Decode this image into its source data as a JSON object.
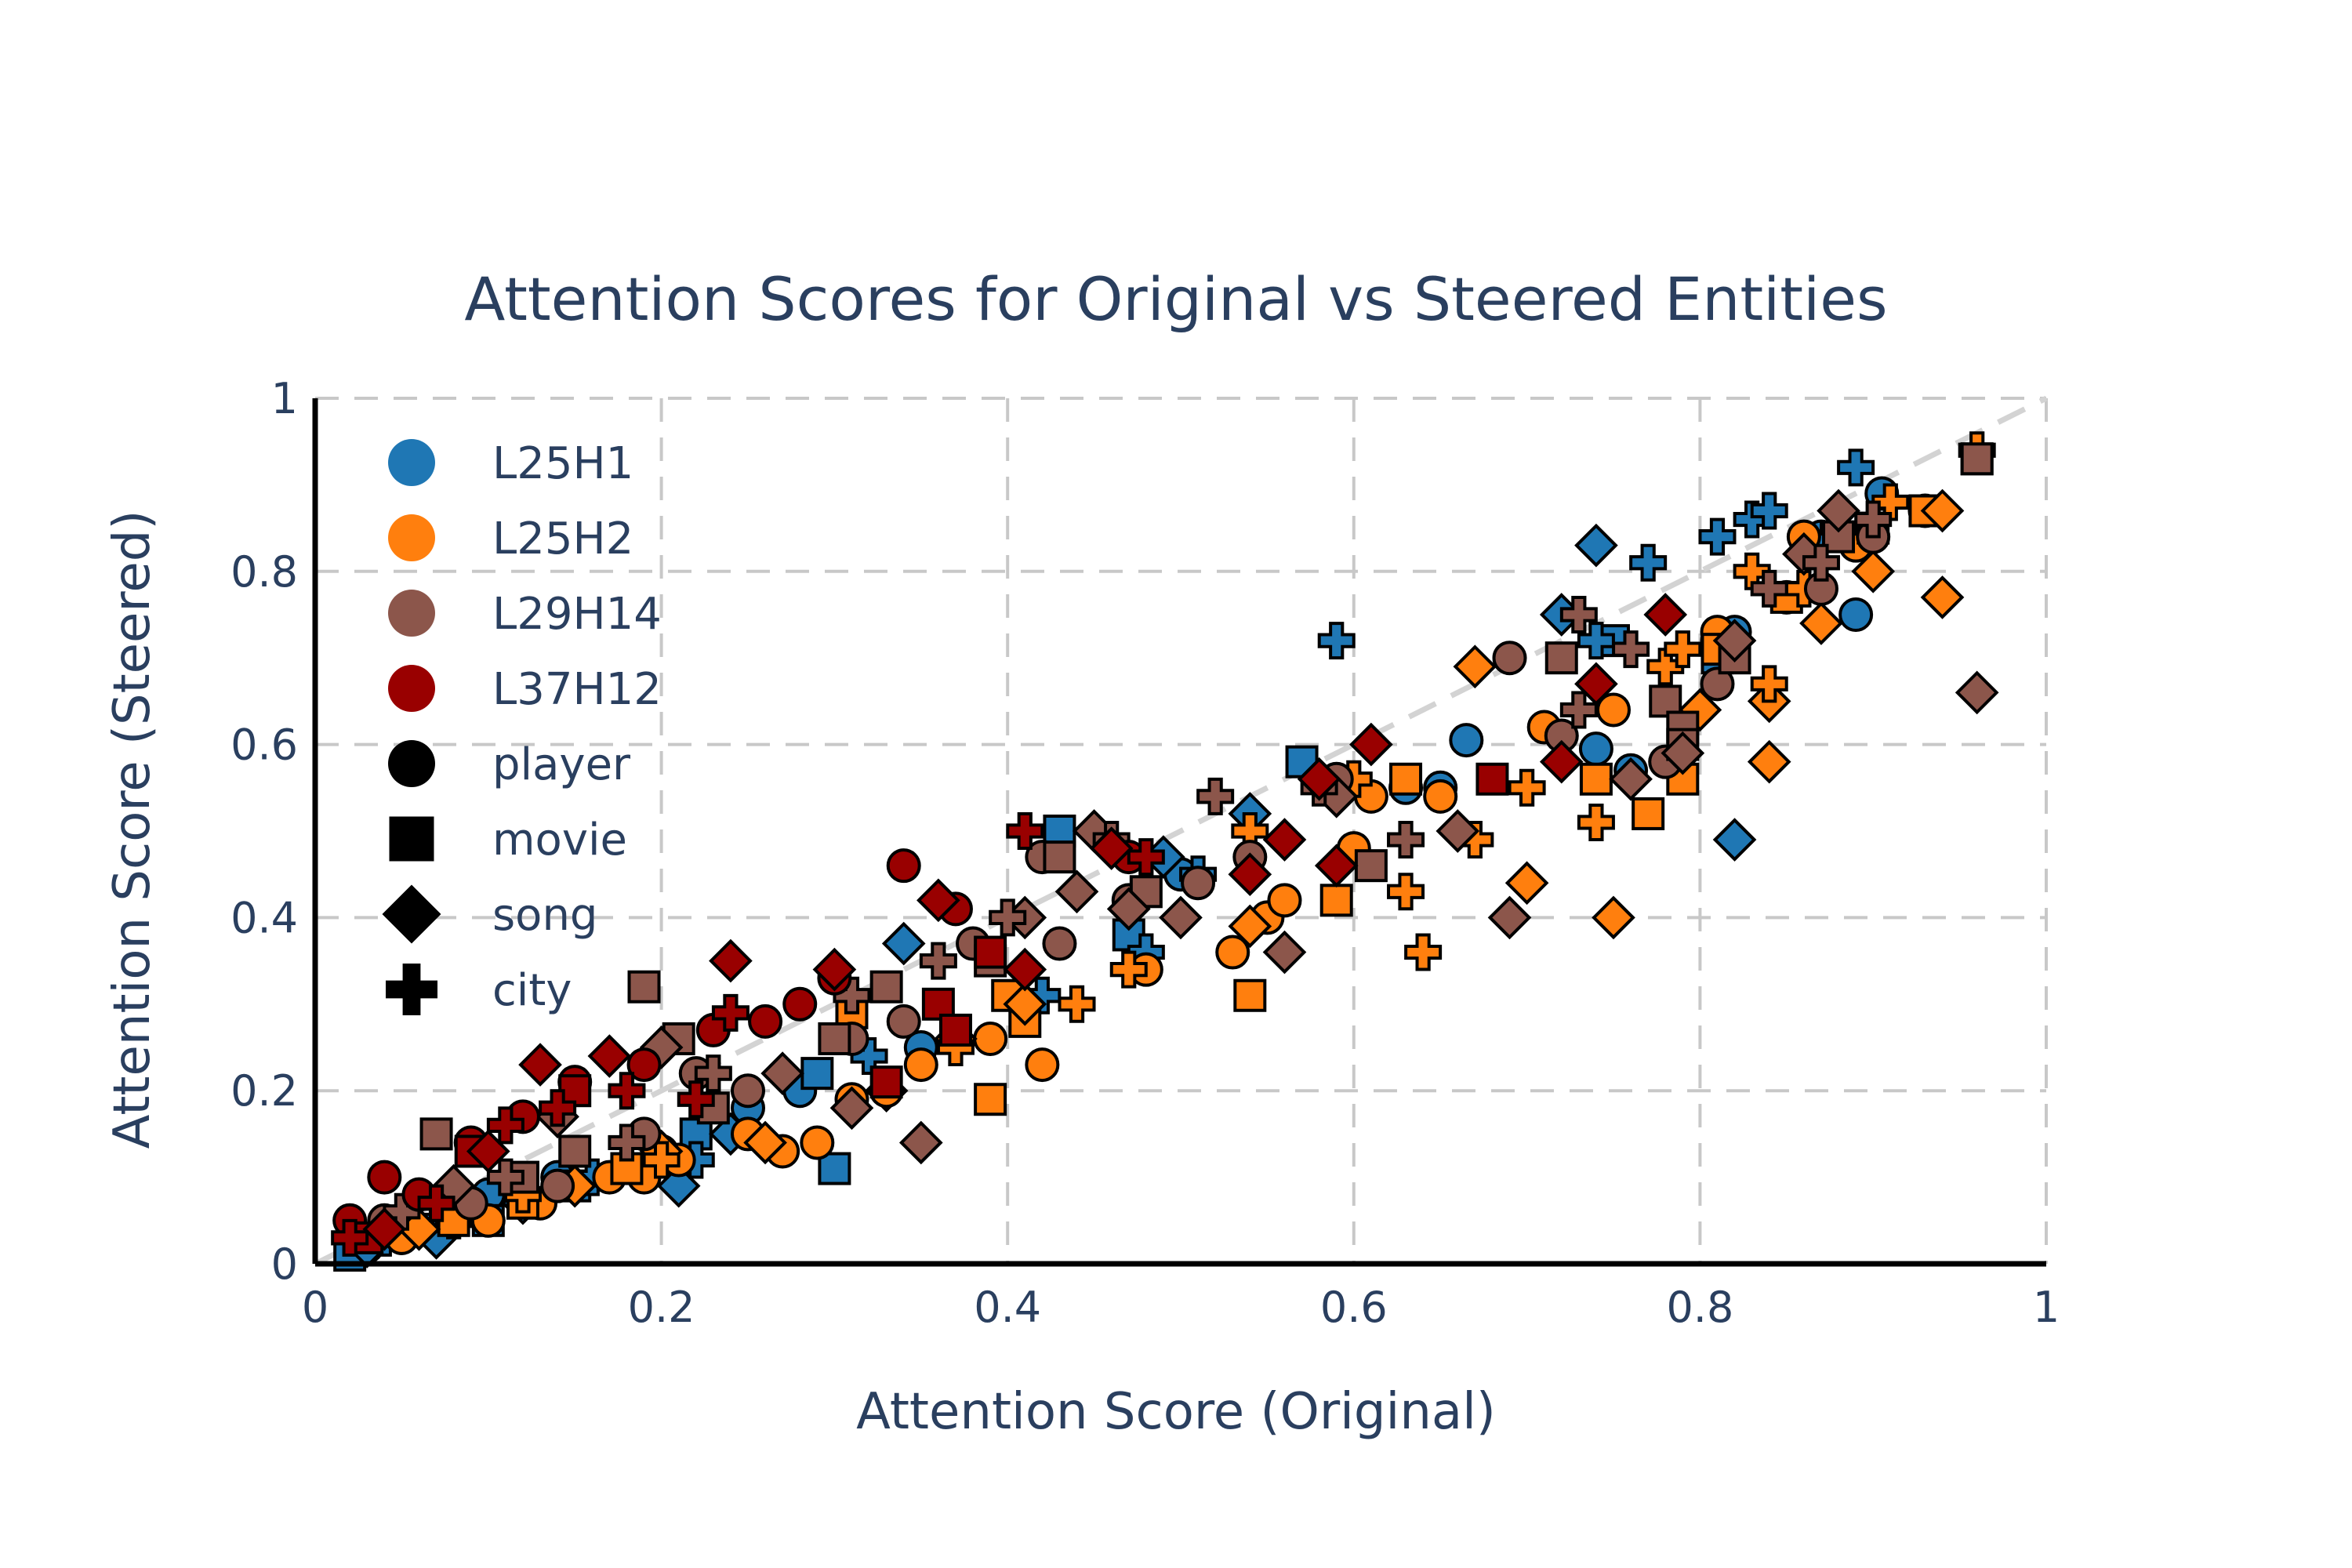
{
  "chart_data": {
    "type": "scatter",
    "title": "Attention Scores for Original vs Steered Entities",
    "xlabel": "Attention Score (Original)",
    "ylabel": "Attention Score (Steered)",
    "xlim": [
      0,
      1
    ],
    "ylim": [
      0,
      1
    ],
    "xticks": [
      0,
      0.2,
      0.4,
      0.6,
      0.8,
      1
    ],
    "yticks": [
      0,
      0.2,
      0.4,
      0.6,
      0.8,
      1
    ],
    "xtick_labels": [
      "0",
      "0.2",
      "0.4",
      "0.6",
      "0.8",
      "1"
    ],
    "ytick_labels": [
      "0",
      "0.2",
      "0.4",
      "0.6",
      "0.8",
      "1"
    ],
    "grid": true,
    "grid_style": "dashed",
    "reference_line": "y = x (dashed)",
    "legend_placement": "top-left",
    "heads": [
      {
        "name": "L25H1",
        "color": "#1f77b4"
      },
      {
        "name": "L25H2",
        "color": "#ff7f0e"
      },
      {
        "name": "L29H14",
        "color": "#8c564b"
      },
      {
        "name": "L37H12",
        "color": "#990000"
      }
    ],
    "entity_types": [
      {
        "name": "player",
        "symbol": "circle"
      },
      {
        "name": "movie",
        "symbol": "square"
      },
      {
        "name": "song",
        "symbol": "diamond"
      },
      {
        "name": "city",
        "symbol": "cross"
      }
    ],
    "series": [
      {
        "head": "L25H1",
        "entity": "player",
        "points": [
          [
            0.03,
            0.02
          ],
          [
            0.05,
            0.03
          ],
          [
            0.1,
            0.08
          ],
          [
            0.14,
            0.1
          ],
          [
            0.2,
            0.13
          ],
          [
            0.25,
            0.18
          ],
          [
            0.28,
            0.2
          ],
          [
            0.35,
            0.25
          ],
          [
            0.5,
            0.45
          ],
          [
            0.63,
            0.55
          ],
          [
            0.65,
            0.55
          ],
          [
            0.665,
            0.605
          ],
          [
            0.74,
            0.595
          ],
          [
            0.76,
            0.57
          ],
          [
            0.81,
            0.72
          ],
          [
            0.82,
            0.73
          ],
          [
            0.85,
            0.77
          ],
          [
            0.87,
            0.84
          ],
          [
            0.89,
            0.75
          ],
          [
            0.905,
            0.89
          ]
        ]
      },
      {
        "head": "L25H1",
        "entity": "movie",
        "points": [
          [
            0.02,
            0.01
          ],
          [
            0.06,
            0.04
          ],
          [
            0.1,
            0.05
          ],
          [
            0.15,
            0.09
          ],
          [
            0.22,
            0.15
          ],
          [
            0.29,
            0.22
          ],
          [
            0.3,
            0.11
          ],
          [
            0.43,
            0.5
          ],
          [
            0.47,
            0.38
          ],
          [
            0.57,
            0.58
          ],
          [
            0.75,
            0.72
          ],
          [
            0.81,
            0.7
          ]
        ]
      },
      {
        "head": "L25H1",
        "entity": "song",
        "points": [
          [
            0.03,
            0.02
          ],
          [
            0.07,
            0.03
          ],
          [
            0.12,
            0.07
          ],
          [
            0.21,
            0.09
          ],
          [
            0.24,
            0.15
          ],
          [
            0.33,
            0.2
          ],
          [
            0.34,
            0.37
          ],
          [
            0.41,
            0.3
          ],
          [
            0.49,
            0.47
          ],
          [
            0.54,
            0.52
          ],
          [
            0.72,
            0.75
          ],
          [
            0.74,
            0.83
          ],
          [
            0.82,
            0.49
          ]
        ]
      },
      {
        "head": "L25H1",
        "entity": "city",
        "points": [
          [
            0.04,
            0.03
          ],
          [
            0.08,
            0.05
          ],
          [
            0.16,
            0.1
          ],
          [
            0.22,
            0.12
          ],
          [
            0.32,
            0.24
          ],
          [
            0.42,
            0.31
          ],
          [
            0.48,
            0.36
          ],
          [
            0.51,
            0.45
          ],
          [
            0.59,
            0.72
          ],
          [
            0.74,
            0.72
          ],
          [
            0.77,
            0.81
          ],
          [
            0.81,
            0.84
          ],
          [
            0.83,
            0.86
          ],
          [
            0.84,
            0.87
          ],
          [
            0.89,
            0.92
          ]
        ]
      },
      {
        "head": "L25H2",
        "entity": "player",
        "points": [
          [
            0.05,
            0.03
          ],
          [
            0.1,
            0.05
          ],
          [
            0.13,
            0.07
          ],
          [
            0.17,
            0.1
          ],
          [
            0.19,
            0.1
          ],
          [
            0.21,
            0.12
          ],
          [
            0.25,
            0.15
          ],
          [
            0.27,
            0.13
          ],
          [
            0.29,
            0.14
          ],
          [
            0.31,
            0.19
          ],
          [
            0.33,
            0.2
          ],
          [
            0.35,
            0.23
          ],
          [
            0.39,
            0.26
          ],
          [
            0.42,
            0.23
          ],
          [
            0.48,
            0.34
          ],
          [
            0.53,
            0.36
          ],
          [
            0.55,
            0.4
          ],
          [
            0.56,
            0.42
          ],
          [
            0.6,
            0.48
          ],
          [
            0.61,
            0.54
          ],
          [
            0.65,
            0.54
          ],
          [
            0.71,
            0.62
          ],
          [
            0.75,
            0.64
          ],
          [
            0.81,
            0.73
          ],
          [
            0.86,
            0.84
          ],
          [
            0.89,
            0.83
          ],
          [
            0.93,
            0.87
          ]
        ]
      },
      {
        "head": "L25H2",
        "entity": "movie",
        "points": [
          [
            0.08,
            0.05
          ],
          [
            0.12,
            0.07
          ],
          [
            0.18,
            0.11
          ],
          [
            0.31,
            0.29
          ],
          [
            0.39,
            0.19
          ],
          [
            0.4,
            0.31
          ],
          [
            0.41,
            0.28
          ],
          [
            0.54,
            0.31
          ],
          [
            0.59,
            0.42
          ],
          [
            0.63,
            0.56
          ],
          [
            0.74,
            0.56
          ],
          [
            0.77,
            0.52
          ],
          [
            0.79,
            0.56
          ],
          [
            0.81,
            0.71
          ],
          [
            0.85,
            0.77
          ],
          [
            0.9,
            0.85
          ],
          [
            0.93,
            0.87
          ],
          [
            0.96,
            0.93
          ]
        ]
      },
      {
        "head": "L25H2",
        "entity": "song",
        "points": [
          [
            0.06,
            0.04
          ],
          [
            0.15,
            0.09
          ],
          [
            0.2,
            0.13
          ],
          [
            0.26,
            0.14
          ],
          [
            0.37,
            0.26
          ],
          [
            0.41,
            0.3
          ],
          [
            0.47,
            0.41
          ],
          [
            0.54,
            0.39
          ],
          [
            0.67,
            0.69
          ],
          [
            0.7,
            0.44
          ],
          [
            0.75,
            0.4
          ],
          [
            0.8,
            0.64
          ],
          [
            0.84,
            0.58
          ],
          [
            0.84,
            0.65
          ],
          [
            0.87,
            0.74
          ],
          [
            0.9,
            0.8
          ],
          [
            0.94,
            0.77
          ],
          [
            0.94,
            0.87
          ]
        ]
      },
      {
        "head": "L25H2",
        "entity": "city",
        "points": [
          [
            0.12,
            0.08
          ],
          [
            0.2,
            0.12
          ],
          [
            0.37,
            0.25
          ],
          [
            0.44,
            0.3
          ],
          [
            0.47,
            0.34
          ],
          [
            0.54,
            0.5
          ],
          [
            0.6,
            0.56
          ],
          [
            0.63,
            0.43
          ],
          [
            0.64,
            0.36
          ],
          [
            0.67,
            0.49
          ],
          [
            0.7,
            0.55
          ],
          [
            0.74,
            0.51
          ],
          [
            0.78,
            0.69
          ],
          [
            0.79,
            0.71
          ],
          [
            0.83,
            0.8
          ],
          [
            0.84,
            0.67
          ],
          [
            0.86,
            0.78
          ],
          [
            0.88,
            0.85
          ],
          [
            0.91,
            0.88
          ],
          [
            0.96,
            0.94
          ]
        ]
      },
      {
        "head": "L29H14",
        "entity": "player",
        "points": [
          [
            0.04,
            0.05
          ],
          [
            0.09,
            0.07
          ],
          [
            0.14,
            0.09
          ],
          [
            0.19,
            0.15
          ],
          [
            0.22,
            0.22
          ],
          [
            0.25,
            0.2
          ],
          [
            0.31,
            0.26
          ],
          [
            0.34,
            0.28
          ],
          [
            0.38,
            0.37
          ],
          [
            0.42,
            0.47
          ],
          [
            0.43,
            0.37
          ],
          [
            0.47,
            0.42
          ],
          [
            0.51,
            0.44
          ],
          [
            0.54,
            0.47
          ],
          [
            0.59,
            0.56
          ],
          [
            0.69,
            0.7
          ],
          [
            0.72,
            0.61
          ],
          [
            0.78,
            0.58
          ],
          [
            0.81,
            0.67
          ],
          [
            0.87,
            0.78
          ],
          [
            0.9,
            0.84
          ]
        ]
      },
      {
        "head": "L29H14",
        "entity": "movie",
        "points": [
          [
            0.07,
            0.15
          ],
          [
            0.12,
            0.1
          ],
          [
            0.15,
            0.13
          ],
          [
            0.19,
            0.32
          ],
          [
            0.21,
            0.26
          ],
          [
            0.23,
            0.18
          ],
          [
            0.3,
            0.26
          ],
          [
            0.33,
            0.32
          ],
          [
            0.39,
            0.35
          ],
          [
            0.43,
            0.47
          ],
          [
            0.48,
            0.43
          ],
          [
            0.61,
            0.46
          ],
          [
            0.72,
            0.7
          ],
          [
            0.78,
            0.65
          ],
          [
            0.79,
            0.62
          ],
          [
            0.79,
            0.6
          ],
          [
            0.82,
            0.7
          ],
          [
            0.88,
            0.84
          ],
          [
            0.96,
            0.93
          ]
        ]
      },
      {
        "head": "L29H14",
        "entity": "song",
        "points": [
          [
            0.08,
            0.09
          ],
          [
            0.14,
            0.17
          ],
          [
            0.2,
            0.25
          ],
          [
            0.27,
            0.22
          ],
          [
            0.31,
            0.18
          ],
          [
            0.35,
            0.14
          ],
          [
            0.41,
            0.4
          ],
          [
            0.44,
            0.43
          ],
          [
            0.45,
            0.5
          ],
          [
            0.47,
            0.41
          ],
          [
            0.5,
            0.4
          ],
          [
            0.56,
            0.36
          ],
          [
            0.59,
            0.54
          ],
          [
            0.66,
            0.5
          ],
          [
            0.69,
            0.4
          ],
          [
            0.76,
            0.56
          ],
          [
            0.79,
            0.59
          ],
          [
            0.82,
            0.72
          ],
          [
            0.86,
            0.82
          ],
          [
            0.88,
            0.87
          ],
          [
            0.96,
            0.66
          ]
        ]
      },
      {
        "head": "L29H14",
        "entity": "city",
        "points": [
          [
            0.05,
            0.06
          ],
          [
            0.11,
            0.1
          ],
          [
            0.18,
            0.14
          ],
          [
            0.23,
            0.22
          ],
          [
            0.31,
            0.31
          ],
          [
            0.36,
            0.35
          ],
          [
            0.4,
            0.4
          ],
          [
            0.46,
            0.49
          ],
          [
            0.52,
            0.54
          ],
          [
            0.58,
            0.55
          ],
          [
            0.63,
            0.49
          ],
          [
            0.73,
            0.64
          ],
          [
            0.73,
            0.75
          ],
          [
            0.76,
            0.71
          ],
          [
            0.84,
            0.78
          ],
          [
            0.87,
            0.81
          ],
          [
            0.9,
            0.86
          ]
        ]
      },
      {
        "head": "L37H12",
        "entity": "player",
        "points": [
          [
            0.02,
            0.05
          ],
          [
            0.04,
            0.1
          ],
          [
            0.06,
            0.08
          ],
          [
            0.09,
            0.14
          ],
          [
            0.12,
            0.17
          ],
          [
            0.15,
            0.21
          ],
          [
            0.19,
            0.23
          ],
          [
            0.23,
            0.27
          ],
          [
            0.26,
            0.28
          ],
          [
            0.28,
            0.3
          ],
          [
            0.3,
            0.33
          ],
          [
            0.34,
            0.46
          ],
          [
            0.37,
            0.41
          ],
          [
            0.47,
            0.47
          ]
        ]
      },
      {
        "head": "L37H12",
        "entity": "movie",
        "points": [
          [
            0.03,
            0.03
          ],
          [
            0.09,
            0.13
          ],
          [
            0.15,
            0.2
          ],
          [
            0.33,
            0.21
          ],
          [
            0.36,
            0.3
          ],
          [
            0.37,
            0.27
          ],
          [
            0.39,
            0.36
          ],
          [
            0.68,
            0.56
          ]
        ]
      },
      {
        "head": "L37H12",
        "entity": "song",
        "points": [
          [
            0.04,
            0.04
          ],
          [
            0.1,
            0.13
          ],
          [
            0.13,
            0.23
          ],
          [
            0.17,
            0.24
          ],
          [
            0.24,
            0.35
          ],
          [
            0.3,
            0.34
          ],
          [
            0.36,
            0.42
          ],
          [
            0.41,
            0.34
          ],
          [
            0.46,
            0.48
          ],
          [
            0.54,
            0.45
          ],
          [
            0.56,
            0.49
          ],
          [
            0.58,
            0.56
          ],
          [
            0.59,
            0.46
          ],
          [
            0.61,
            0.6
          ],
          [
            0.72,
            0.58
          ],
          [
            0.74,
            0.67
          ],
          [
            0.78,
            0.75
          ]
        ]
      },
      {
        "head": "L37H12",
        "entity": "city",
        "points": [
          [
            0.02,
            0.03
          ],
          [
            0.07,
            0.07
          ],
          [
            0.11,
            0.16
          ],
          [
            0.14,
            0.18
          ],
          [
            0.18,
            0.2
          ],
          [
            0.22,
            0.19
          ],
          [
            0.24,
            0.29
          ],
          [
            0.41,
            0.5
          ],
          [
            0.48,
            0.47
          ]
        ]
      }
    ]
  }
}
